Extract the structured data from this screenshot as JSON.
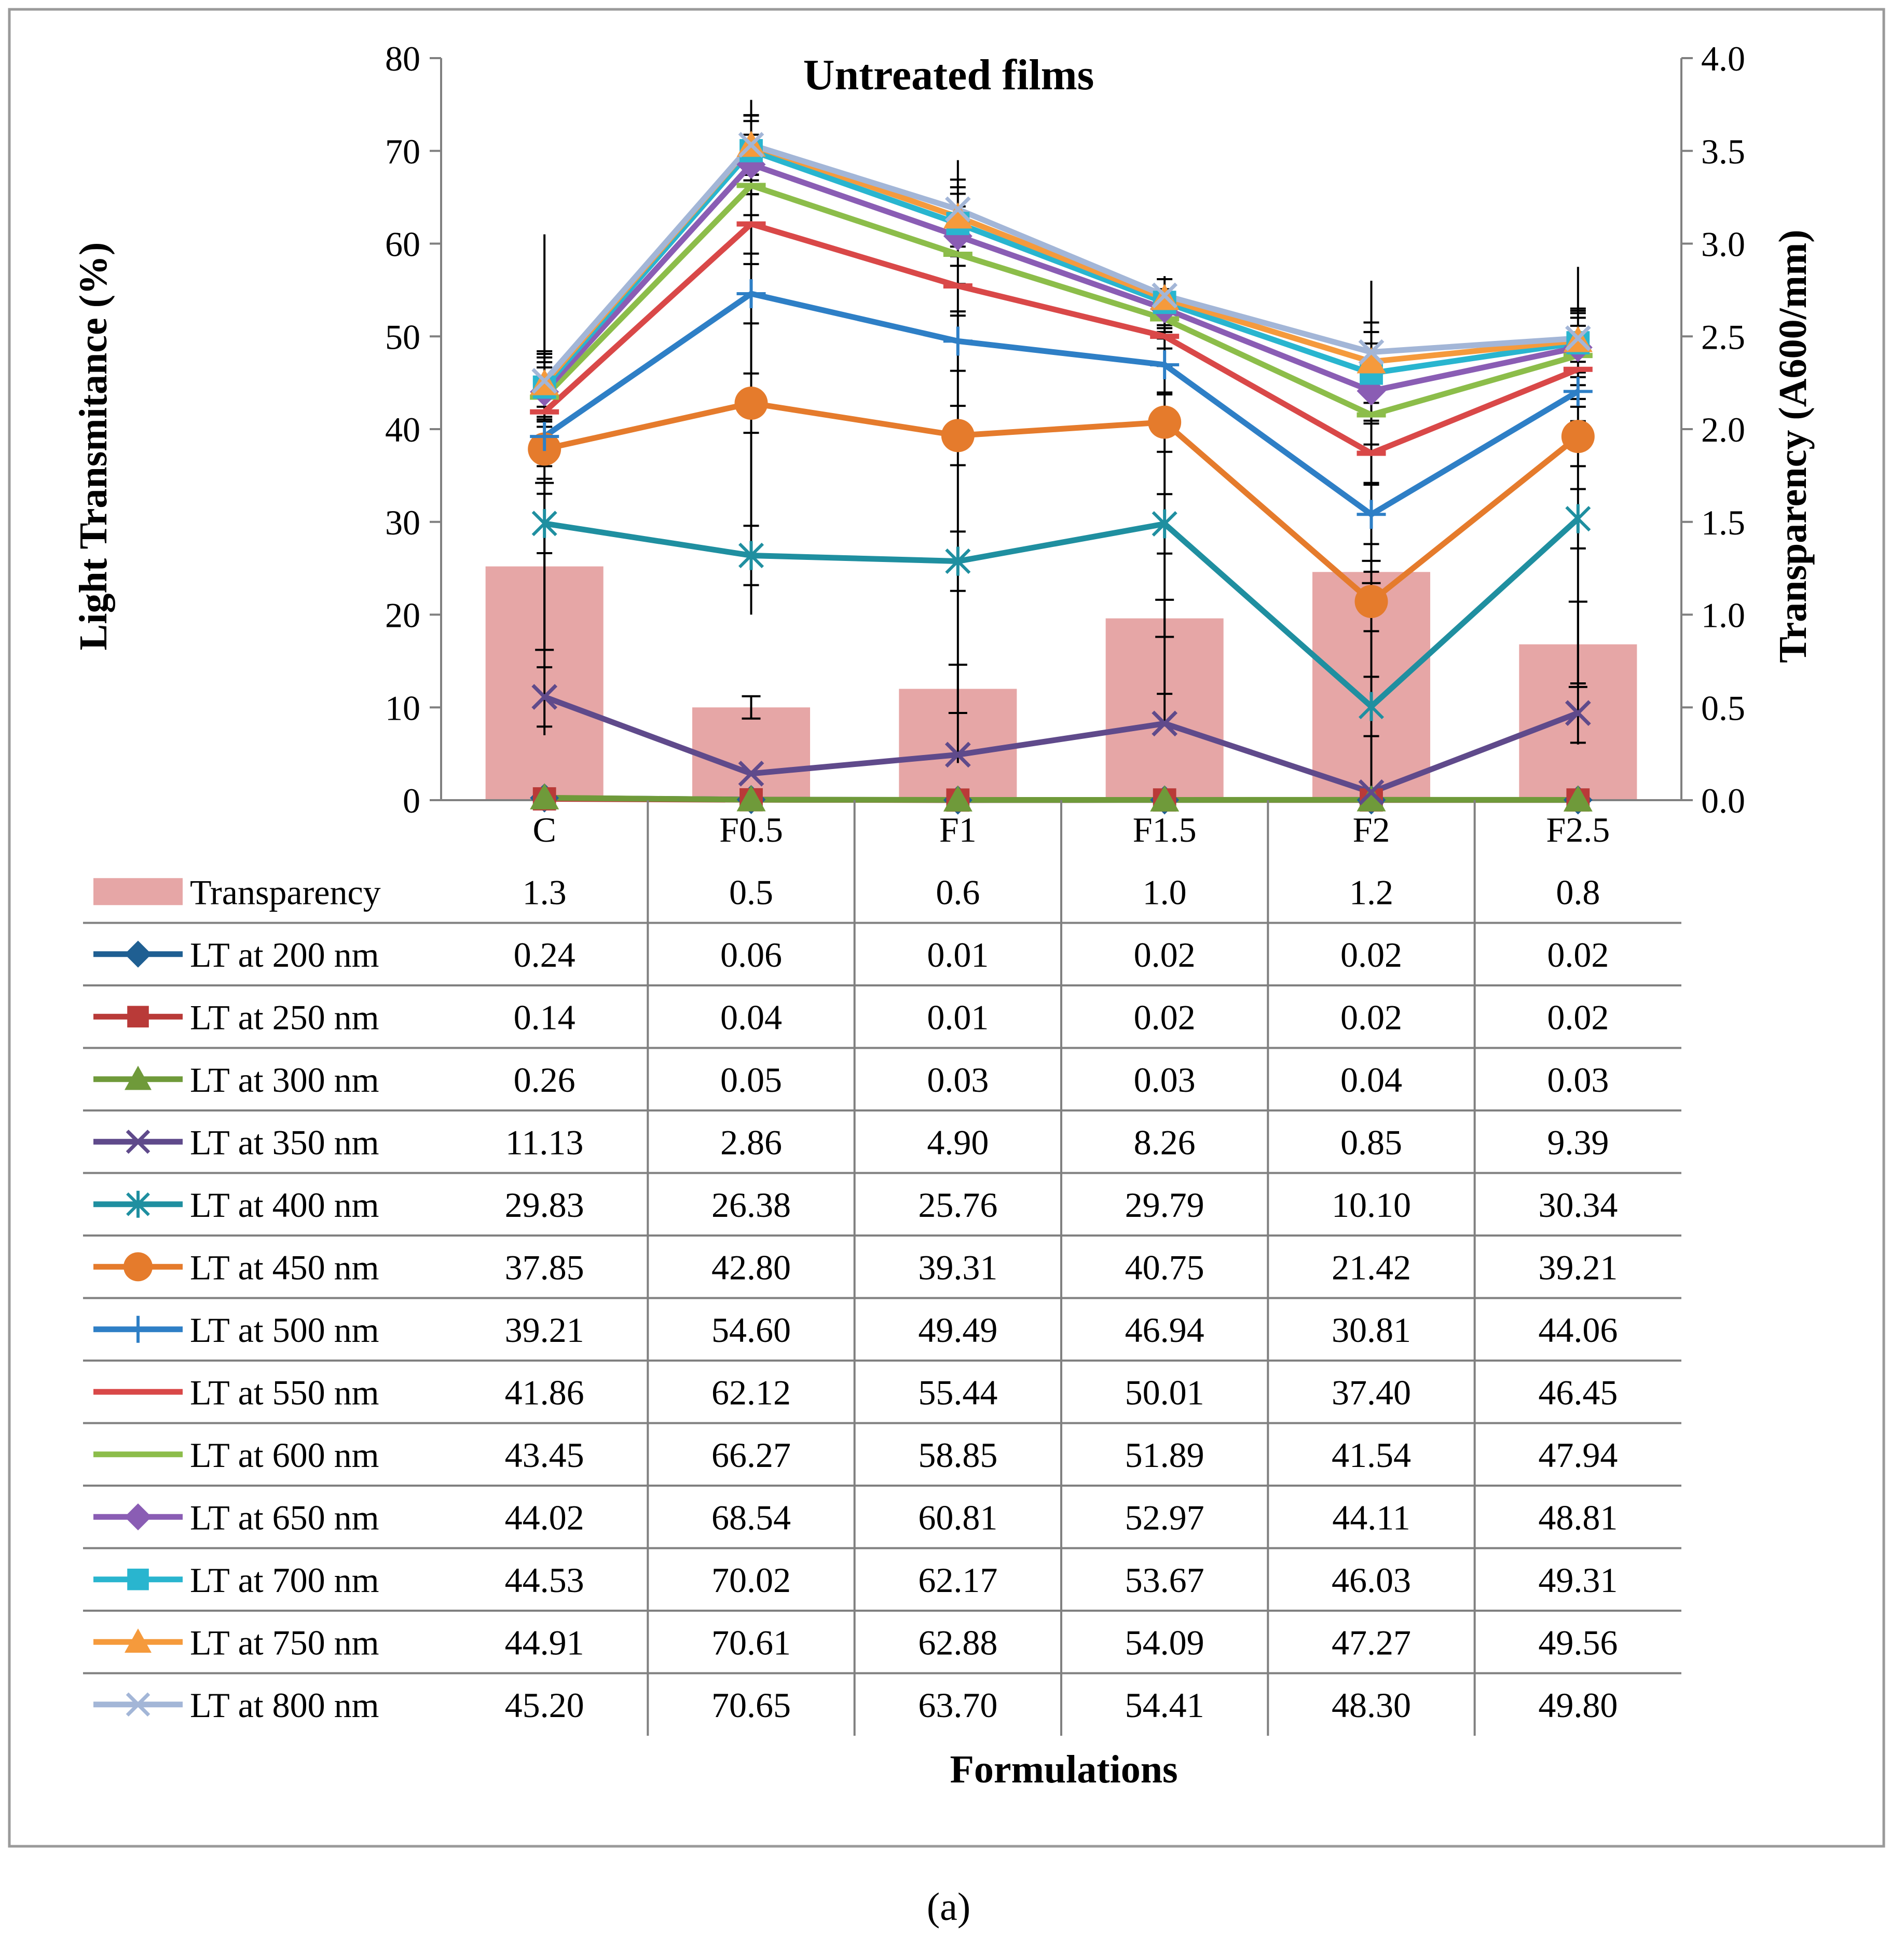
{
  "chart_data": {
    "type": "line",
    "title": "Untreated films",
    "xlabel": "Formulations",
    "ylabel": "Light Transmitance (%)",
    "y2label": "Transparency (A600/mm)",
    "caption": "(a)",
    "categories": [
      "C",
      "F0.5",
      "F1",
      "F1.5",
      "F2",
      "F2.5"
    ],
    "ylim": [
      0,
      80
    ],
    "yticks": [
      "0",
      "10",
      "20",
      "30",
      "40",
      "50",
      "60",
      "70",
      "80"
    ],
    "y2lim": [
      0,
      4
    ],
    "y2ticks": [
      "0.0",
      "0.5",
      "1.0",
      "1.5",
      "2.0",
      "2.5",
      "3.0",
      "3.5",
      "4.0"
    ],
    "grid": false,
    "legend": "data-table",
    "bar_series": {
      "name": "Transparency",
      "color": "#e6a6a6",
      "axis": "right",
      "values": [
        1.26,
        0.5,
        0.6,
        0.98,
        1.23,
        0.84
      ],
      "labels": [
        "1.3",
        "0.5",
        "0.6",
        "1.0",
        "1.2",
        "0.8"
      ],
      "errors": [
        0.45,
        0.06,
        0.13,
        0.1,
        0.06,
        0.23
      ]
    },
    "series": [
      {
        "name": "LT at 200 nm",
        "color": "#1f5f92",
        "marker": "diamond",
        "values": [
          0.24,
          0.06,
          0.01,
          0.02,
          0.02,
          0.02
        ],
        "labels": [
          "0.24",
          "0.06",
          "0.01",
          "0.02",
          "0.02",
          "0.02"
        ]
      },
      {
        "name": "LT at 250 nm",
        "color": "#b93a38",
        "marker": "square",
        "values": [
          0.14,
          0.04,
          0.01,
          0.02,
          0.02,
          0.02
        ],
        "labels": [
          "0.14",
          "0.04",
          "0.01",
          "0.02",
          "0.02",
          "0.02"
        ]
      },
      {
        "name": "LT at 300 nm",
        "color": "#6f9a3a",
        "marker": "triangle",
        "values": [
          0.26,
          0.05,
          0.03,
          0.03,
          0.04,
          0.03
        ],
        "labels": [
          "0.26",
          "0.05",
          "0.03",
          "0.03",
          "0.04",
          "0.03"
        ]
      },
      {
        "name": "LT at 350 nm",
        "color": "#5f4a8b",
        "marker": "x",
        "values": [
          11.13,
          2.86,
          4.9,
          8.26,
          0.85,
          9.39
        ],
        "labels": [
          "11.13",
          "2.86",
          "4.90",
          "8.26",
          "0.85",
          "9.39"
        ]
      },
      {
        "name": "LT at 400 nm",
        "color": "#1f8fa0",
        "marker": "asterisk",
        "values": [
          29.83,
          26.38,
          25.76,
          29.79,
          10.1,
          30.34
        ],
        "labels": [
          "29.83",
          "26.38",
          "25.76",
          "29.79",
          "10.10",
          "30.34"
        ]
      },
      {
        "name": "LT at 450 nm",
        "color": "#e57b2c",
        "marker": "circle",
        "values": [
          37.85,
          42.8,
          39.31,
          40.75,
          21.42,
          39.21
        ],
        "labels": [
          "37.85",
          "42.80",
          "39.31",
          "40.75",
          "21.42",
          "39.21"
        ]
      },
      {
        "name": "LT at 500 nm",
        "color": "#2e7fc6",
        "marker": "plus",
        "values": [
          39.21,
          54.6,
          49.49,
          46.94,
          30.81,
          44.06
        ],
        "labels": [
          "39.21",
          "54.60",
          "49.49",
          "46.94",
          "30.81",
          "44.06"
        ]
      },
      {
        "name": "LT at 550 nm",
        "color": "#d94848",
        "marker": "dash",
        "values": [
          41.86,
          62.12,
          55.44,
          50.01,
          37.4,
          46.45
        ],
        "labels": [
          "41.86",
          "62.12",
          "55.44",
          "50.01",
          "37.40",
          "46.45"
        ]
      },
      {
        "name": "LT at 600 nm",
        "color": "#8cbd4a",
        "marker": "dash",
        "values": [
          43.45,
          66.27,
          58.85,
          51.89,
          41.54,
          47.94
        ],
        "labels": [
          "43.45",
          "66.27",
          "58.85",
          "51.89",
          "41.54",
          "47.94"
        ]
      },
      {
        "name": "LT at 650 nm",
        "color": "#8a5db4",
        "marker": "diamond",
        "values": [
          44.02,
          68.54,
          60.81,
          52.97,
          44.11,
          48.81
        ],
        "labels": [
          "44.02",
          "68.54",
          "60.81",
          "52.97",
          "44.11",
          "48.81"
        ]
      },
      {
        "name": "LT at 700 nm",
        "color": "#29b5cf",
        "marker": "square",
        "values": [
          44.53,
          70.02,
          62.17,
          53.67,
          46.03,
          49.31
        ],
        "labels": [
          "44.53",
          "70.02",
          "62.17",
          "53.67",
          "46.03",
          "49.31"
        ]
      },
      {
        "name": "LT at 750 nm",
        "color": "#f59a3c",
        "marker": "triangle",
        "values": [
          44.91,
          70.61,
          62.88,
          54.09,
          47.27,
          49.56
        ],
        "labels": [
          "44.91",
          "70.61",
          "62.88",
          "54.09",
          "47.27",
          "49.56"
        ]
      },
      {
        "name": "LT at 800 nm",
        "color": "#a3b6d7",
        "marker": "x",
        "values": [
          45.2,
          70.65,
          63.7,
          54.41,
          48.3,
          49.8
        ],
        "labels": [
          "45.20",
          "70.65",
          "63.70",
          "54.41",
          "48.30",
          "49.80"
        ]
      }
    ],
    "error_bars": {
      "color": "#000000",
      "highs": [
        61,
        75.5,
        69,
        56.5,
        56,
        57.5
      ],
      "lows": [
        7,
        20,
        4,
        8,
        0.5,
        6
      ]
    }
  }
}
